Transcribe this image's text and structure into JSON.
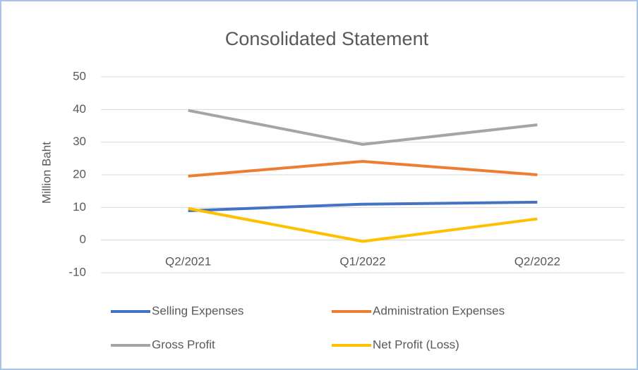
{
  "chart_data": {
    "type": "line",
    "title": "Consolidated Statement",
    "y_label": "Million Baht",
    "categories": [
      "Q2/2021",
      "Q1/2022",
      "Q2/2022"
    ],
    "series": [
      {
        "name": "Selling Expenses",
        "color": "#4472c4",
        "values": [
          9,
          11,
          11.6
        ]
      },
      {
        "name": "Administration Expenses",
        "color": "#ed7d31",
        "values": [
          19.6,
          24.1,
          20
        ]
      },
      {
        "name": "Gross Profit",
        "color": "#a5a5a5",
        "values": [
          39.7,
          29.3,
          35.3
        ]
      },
      {
        "name": "Net Profit (Loss)",
        "color": "#ffc000",
        "values": [
          9.7,
          -0.4,
          6.5
        ]
      }
    ],
    "ylim": [
      -10,
      50
    ],
    "yticks": [
      -10,
      0,
      10,
      20,
      30,
      40,
      50
    ],
    "grid": true,
    "legend": "bottom"
  }
}
